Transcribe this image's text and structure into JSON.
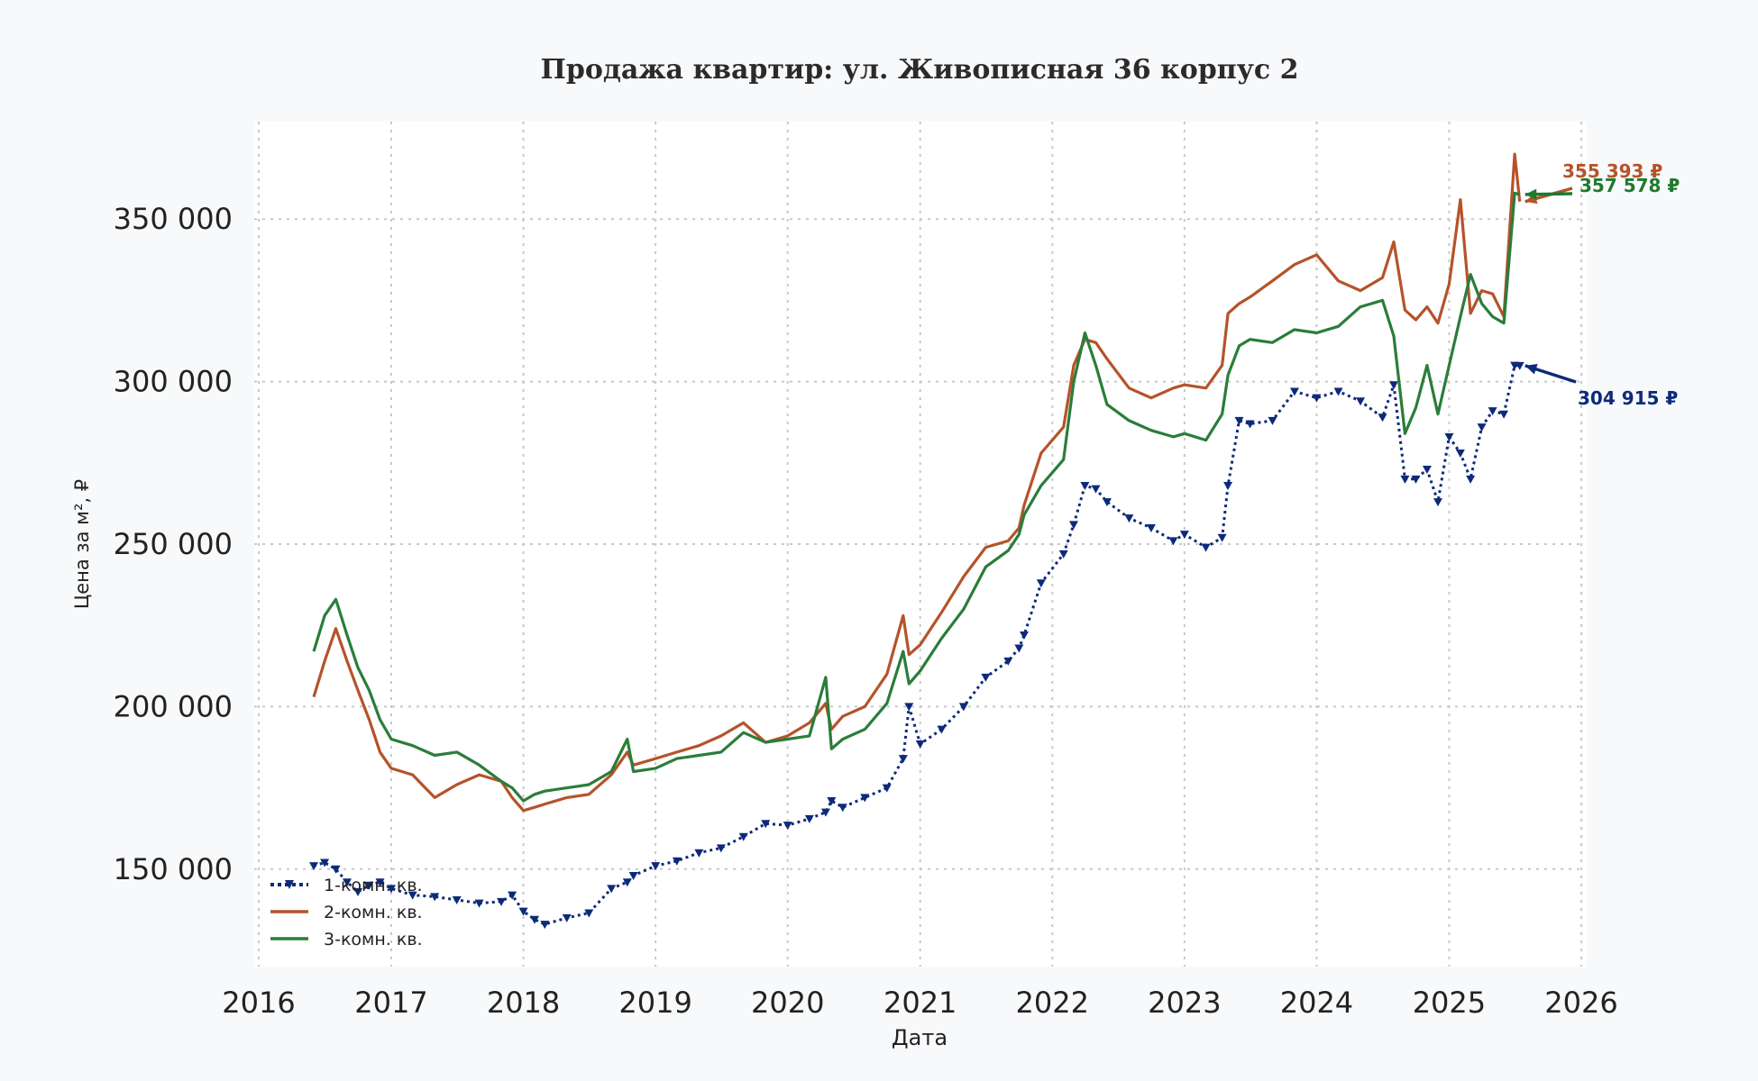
{
  "chart_data": {
    "type": "line",
    "title": "Продажа квартир: ул. Живописная 36 корпус 2",
    "xlabel": "Дата",
    "ylabel": "Цена за м², ₽",
    "xlim": [
      "2016-01-01",
      "2026-01-01"
    ],
    "ylim": [
      120000,
      380000
    ],
    "x_ticks": [
      "2016",
      "2017",
      "2018",
      "2019",
      "2020",
      "2021",
      "2022",
      "2023",
      "2024",
      "2025",
      "2026"
    ],
    "y_ticks": [
      150000,
      200000,
      250000,
      300000,
      350000
    ],
    "y_tick_labels": [
      "150 000",
      "200 000",
      "250 000",
      "300 000",
      "350 000"
    ],
    "grid": true,
    "legend_position": "lower-left",
    "series": [
      {
        "name": "1-комн. кв.",
        "color": "#0d2a7a",
        "style": "dotted-triangle-markers",
        "x": [
          "2016-06-01",
          "2016-07-01",
          "2016-08-01",
          "2016-09-01",
          "2016-10-01",
          "2016-11-01",
          "2016-12-01",
          "2017-01-01",
          "2017-03-01",
          "2017-05-01",
          "2017-07-01",
          "2017-09-01",
          "2017-11-01",
          "2017-12-01",
          "2018-01-01",
          "2018-02-01",
          "2018-03-01",
          "2018-05-01",
          "2018-07-01",
          "2018-09-01",
          "2018-10-15",
          "2018-11-01",
          "2019-01-01",
          "2019-03-01",
          "2019-05-01",
          "2019-07-01",
          "2019-09-01",
          "2019-11-01",
          "2020-01-01",
          "2020-03-01",
          "2020-04-15",
          "2020-05-01",
          "2020-06-01",
          "2020-08-01",
          "2020-10-01",
          "2020-11-15",
          "2020-12-01",
          "2021-01-01",
          "2021-03-01",
          "2021-05-01",
          "2021-07-01",
          "2021-09-01",
          "2021-10-01",
          "2021-10-15",
          "2021-12-01",
          "2022-02-01",
          "2022-03-01",
          "2022-04-01",
          "2022-05-01",
          "2022-06-01",
          "2022-08-01",
          "2022-10-01",
          "2022-12-01",
          "2023-01-01",
          "2023-03-01",
          "2023-04-15",
          "2023-05-01",
          "2023-06-01",
          "2023-07-01",
          "2023-09-01",
          "2023-11-01",
          "2024-01-01",
          "2024-03-01",
          "2024-05-01",
          "2024-07-01",
          "2024-08-01",
          "2024-09-01",
          "2024-10-01",
          "2024-11-01",
          "2024-12-01",
          "2025-01-01",
          "2025-02-01",
          "2025-03-01",
          "2025-04-01",
          "2025-05-01",
          "2025-06-01",
          "2025-07-01",
          "2025-07-15"
        ],
        "values": [
          151000,
          152000,
          150000,
          146000,
          143000,
          145000,
          146000,
          144000,
          142000,
          141500,
          140500,
          139500,
          140000,
          142000,
          137000,
          134500,
          133000,
          135000,
          136500,
          144000,
          146000,
          148000,
          151000,
          152500,
          155000,
          156500,
          160000,
          164000,
          163500,
          165500,
          167500,
          171000,
          169000,
          172000,
          175000,
          184000,
          200000,
          188500,
          193000,
          200000,
          209000,
          214000,
          218000,
          222000,
          238000,
          247000,
          256000,
          268000,
          267000,
          263000,
          258000,
          255000,
          251000,
          253000,
          249000,
          252000,
          268000,
          288000,
          287000,
          288000,
          297000,
          295000,
          297000,
          294000,
          289000,
          299000,
          270000,
          270000,
          273000,
          263000,
          283000,
          278000,
          270000,
          286000,
          291000,
          290000,
          305000,
          304915
        ]
      },
      {
        "name": "2-комн. кв.",
        "color": "#b5532a",
        "style": "solid",
        "x": [
          "2016-06-01",
          "2016-07-01",
          "2016-08-01",
          "2016-09-01",
          "2016-10-01",
          "2016-11-01",
          "2016-12-01",
          "2017-01-01",
          "2017-03-01",
          "2017-05-01",
          "2017-07-01",
          "2017-09-01",
          "2017-11-01",
          "2017-12-01",
          "2018-01-01",
          "2018-02-01",
          "2018-03-01",
          "2018-05-01",
          "2018-07-01",
          "2018-09-01",
          "2018-10-15",
          "2018-11-01",
          "2019-01-01",
          "2019-03-01",
          "2019-05-01",
          "2019-07-01",
          "2019-09-01",
          "2019-11-01",
          "2020-01-01",
          "2020-03-01",
          "2020-04-15",
          "2020-05-01",
          "2020-06-01",
          "2020-08-01",
          "2020-10-01",
          "2020-11-15",
          "2020-12-01",
          "2021-01-01",
          "2021-03-01",
          "2021-05-01",
          "2021-07-01",
          "2021-09-01",
          "2021-10-01",
          "2021-10-15",
          "2021-12-01",
          "2022-02-01",
          "2022-03-01",
          "2022-04-01",
          "2022-05-01",
          "2022-06-01",
          "2022-08-01",
          "2022-10-01",
          "2022-12-01",
          "2023-01-01",
          "2023-03-01",
          "2023-04-15",
          "2023-05-01",
          "2023-06-01",
          "2023-07-01",
          "2023-09-01",
          "2023-11-01",
          "2024-01-01",
          "2024-03-01",
          "2024-05-01",
          "2024-07-01",
          "2024-08-01",
          "2024-09-01",
          "2024-10-01",
          "2024-11-01",
          "2024-12-01",
          "2025-01-01",
          "2025-02-01",
          "2025-03-01",
          "2025-04-01",
          "2025-05-01",
          "2025-06-01",
          "2025-07-01",
          "2025-07-15"
        ],
        "values": [
          203000,
          214000,
          224000,
          214000,
          205000,
          196000,
          186000,
          181000,
          179000,
          172000,
          176000,
          179000,
          177000,
          172000,
          168000,
          169000,
          170000,
          172000,
          173000,
          179000,
          186000,
          182000,
          184000,
          186000,
          188000,
          191000,
          195000,
          189000,
          191000,
          195000,
          201000,
          193000,
          197000,
          200000,
          210000,
          228000,
          216000,
          219000,
          229000,
          240000,
          249000,
          251000,
          255000,
          262000,
          278000,
          286000,
          305000,
          313000,
          312000,
          307000,
          298000,
          295000,
          298000,
          299000,
          298000,
          305000,
          321000,
          324000,
          326000,
          331000,
          336000,
          339000,
          331000,
          328000,
          332000,
          343000,
          322000,
          319000,
          323000,
          318000,
          330000,
          356000,
          321000,
          328000,
          327000,
          320000,
          370000,
          355393
        ]
      },
      {
        "name": "3-комн. кв.",
        "color": "#2a7d3a",
        "style": "solid",
        "x": [
          "2016-06-01",
          "2016-07-01",
          "2016-08-01",
          "2016-09-01",
          "2016-10-01",
          "2016-11-01",
          "2016-12-01",
          "2017-01-01",
          "2017-03-01",
          "2017-05-01",
          "2017-07-01",
          "2017-09-01",
          "2017-11-01",
          "2017-12-01",
          "2018-01-01",
          "2018-02-01",
          "2018-03-01",
          "2018-05-01",
          "2018-07-01",
          "2018-09-01",
          "2018-10-15",
          "2018-11-01",
          "2019-01-01",
          "2019-03-01",
          "2019-05-01",
          "2019-07-01",
          "2019-09-01",
          "2019-11-01",
          "2020-01-01",
          "2020-03-01",
          "2020-04-15",
          "2020-05-01",
          "2020-06-01",
          "2020-08-01",
          "2020-10-01",
          "2020-11-15",
          "2020-12-01",
          "2021-01-01",
          "2021-03-01",
          "2021-05-01",
          "2021-07-01",
          "2021-09-01",
          "2021-10-01",
          "2021-10-15",
          "2021-12-01",
          "2022-02-01",
          "2022-03-01",
          "2022-04-01",
          "2022-05-01",
          "2022-06-01",
          "2022-08-01",
          "2022-10-01",
          "2022-12-01",
          "2023-01-01",
          "2023-03-01",
          "2023-04-15",
          "2023-05-01",
          "2023-06-01",
          "2023-07-01",
          "2023-09-01",
          "2023-11-01",
          "2024-01-01",
          "2024-03-01",
          "2024-05-01",
          "2024-07-01",
          "2024-08-01",
          "2024-09-01",
          "2024-10-01",
          "2024-11-01",
          "2024-12-01",
          "2025-01-01",
          "2025-02-01",
          "2025-03-01",
          "2025-04-01",
          "2025-05-01",
          "2025-06-01",
          "2025-07-01",
          "2025-07-15"
        ],
        "values": [
          217000,
          228000,
          233000,
          222000,
          212000,
          205000,
          196000,
          190000,
          188000,
          185000,
          186000,
          182000,
          177000,
          175000,
          171000,
          173000,
          174000,
          175000,
          176000,
          180000,
          190000,
          180000,
          181000,
          184000,
          185000,
          186000,
          192000,
          189000,
          190000,
          191000,
          209000,
          187000,
          190000,
          193000,
          201000,
          217000,
          207000,
          211000,
          221000,
          230000,
          243000,
          248000,
          253000,
          259000,
          268000,
          276000,
          300000,
          315000,
          305000,
          293000,
          288000,
          285000,
          283000,
          284000,
          282000,
          290000,
          302000,
          311000,
          313000,
          312000,
          316000,
          315000,
          317000,
          323000,
          325000,
          314000,
          284000,
          292000,
          305000,
          290000,
          305000,
          320000,
          333000,
          324000,
          320000,
          318000,
          358000,
          357578
        ]
      }
    ],
    "annotations": [
      {
        "text": "304 915 ₽",
        "series": "1-комн. кв.",
        "color": "#0d2a7a"
      },
      {
        "text": "355 393 ₽",
        "series": "2-комн. кв.",
        "color": "#b5532a"
      },
      {
        "text": "357 578 ₽",
        "series": "3-комн. кв.",
        "color": "#1f7a2e"
      }
    ]
  }
}
